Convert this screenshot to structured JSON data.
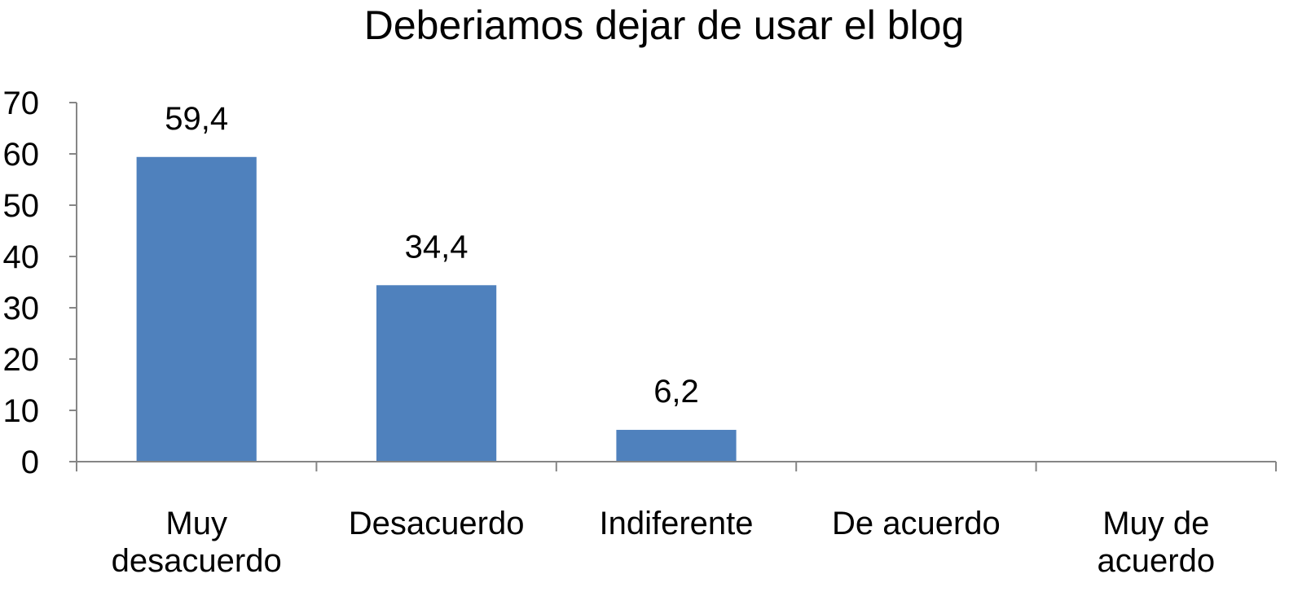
{
  "chart_data": {
    "type": "bar",
    "title": "Deberiamos dejar de usar el blog",
    "xlabel": "",
    "ylabel": "",
    "categories": [
      [
        "Muy",
        "desacuerdo"
      ],
      [
        "Desacuerdo"
      ],
      [
        "Indiferente"
      ],
      [
        "De acuerdo"
      ],
      [
        "Muy de",
        "acuerdo"
      ]
    ],
    "values": [
      59.4,
      34.4,
      6.2,
      0,
      0
    ],
    "data_labels": [
      "59,4",
      "34,4",
      "6,2",
      "",
      ""
    ],
    "yticks": [
      0,
      10,
      20,
      30,
      40,
      50,
      60,
      70
    ],
    "ylim": [
      0,
      70
    ],
    "grid": false,
    "legend": "none",
    "bar_color": "#4F81BD",
    "axis_color": "#868686"
  }
}
